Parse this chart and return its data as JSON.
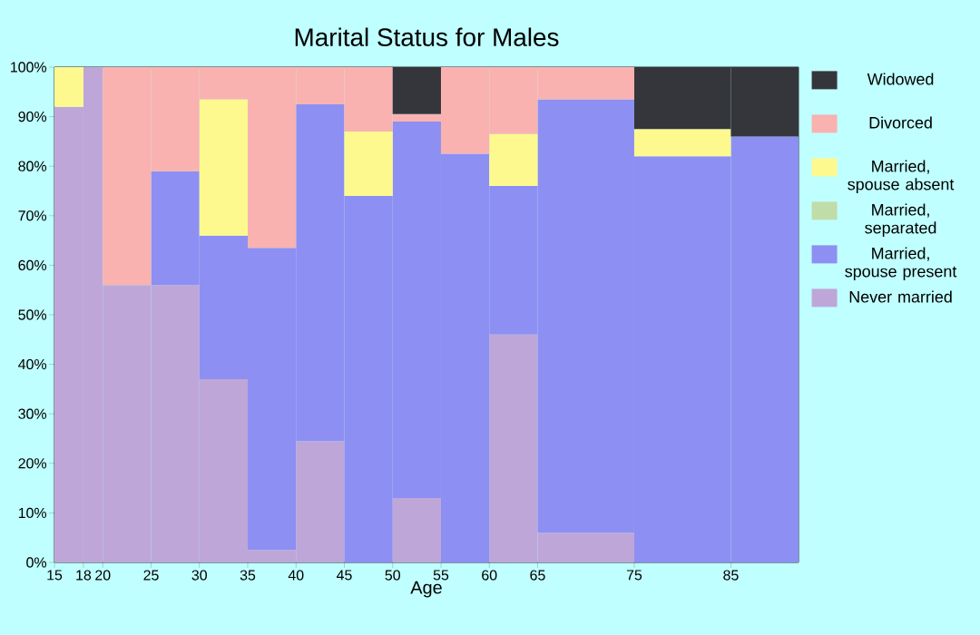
{
  "chart_data": {
    "type": "bar",
    "stacked": true,
    "title": "Marital Status for Males",
    "xlabel": "Age",
    "x": [
      16.5,
      19,
      22.5,
      27.5,
      32.5,
      37.5,
      42.5,
      47.5,
      52.5,
      57.5,
      62.5,
      70,
      80,
      88.5
    ],
    "xlim": [
      15,
      92
    ],
    "xticks": [
      15,
      18,
      20,
      25,
      30,
      35,
      40,
      45,
      50,
      55,
      60,
      65,
      75,
      85
    ],
    "ylim": [
      0,
      100
    ],
    "yticks": [
      {
        "value": 0,
        "label": "0%"
      },
      {
        "value": 10,
        "label": "10%"
      },
      {
        "value": 20,
        "label": "20%"
      },
      {
        "value": 30,
        "label": "30%"
      },
      {
        "value": 40,
        "label": "40%"
      },
      {
        "value": 50,
        "label": "50%"
      },
      {
        "value": 60,
        "label": "60%"
      },
      {
        "value": 70,
        "label": "70%"
      },
      {
        "value": 80,
        "label": "80%"
      },
      {
        "value": 90,
        "label": "90%"
      },
      {
        "value": 100,
        "label": "100%"
      }
    ],
    "legend": "right",
    "series": [
      {
        "name": "Never married",
        "color": "#bea7d8",
        "values": [
          92,
          100,
          56,
          56,
          37,
          2.5,
          24.5,
          0,
          13,
          0,
          46,
          6,
          0,
          0
        ]
      },
      {
        "name": "Married, spouse present",
        "color": "#8e8ff2",
        "values": [
          0,
          0,
          0,
          23,
          29,
          61,
          68,
          74,
          76,
          82.5,
          30,
          87.5,
          82,
          86
        ]
      },
      {
        "name": "Married, separated",
        "color": "#c0dca8",
        "values": [
          0,
          0,
          0,
          0,
          0,
          0,
          0,
          0,
          0,
          0,
          0,
          0,
          0,
          0
        ]
      },
      {
        "name": "Married, spouse absent",
        "color": "#fdf98f",
        "values": [
          8,
          0,
          0,
          0,
          27.5,
          0,
          0,
          13,
          0,
          0,
          10.5,
          0,
          5.5,
          0
        ]
      },
      {
        "name": "Divorced",
        "color": "#f9b2b0",
        "values": [
          0,
          0,
          44,
          21,
          6.5,
          36.5,
          7.5,
          13,
          1.5,
          17.5,
          13.5,
          6.5,
          0,
          0
        ]
      },
      {
        "name": "Widowed",
        "color": "#35363b",
        "values": [
          0,
          0,
          0,
          0,
          0,
          0,
          0,
          0,
          9.5,
          0,
          0,
          0,
          12.5,
          14
        ]
      }
    ]
  }
}
